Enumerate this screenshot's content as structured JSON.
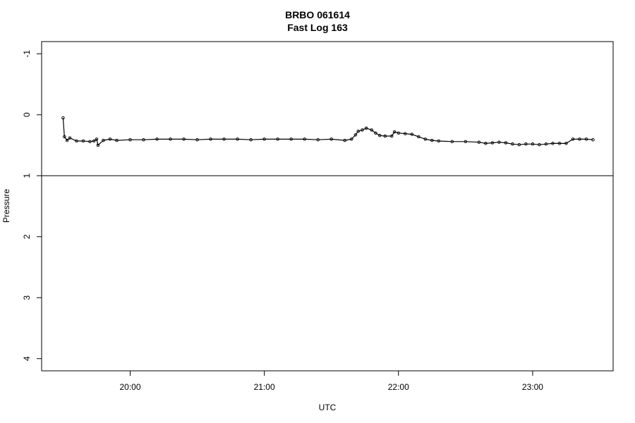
{
  "chart_data": {
    "type": "scatter",
    "title": "BRBO 061614",
    "subtitle": "Fast Log 163",
    "xlabel": "UTC",
    "ylabel": "Pressure",
    "x_unit": "hours UTC",
    "xlim": [
      19.34,
      23.6
    ],
    "ylim": [
      4.2,
      -1.2
    ],
    "y_reversed": true,
    "x_ticks": [
      {
        "value": 20,
        "label": "20:00"
      },
      {
        "value": 21,
        "label": "21:00"
      },
      {
        "value": 22,
        "label": "22:00"
      },
      {
        "value": 23,
        "label": "23:00"
      }
    ],
    "y_ticks": [
      {
        "value": -1,
        "label": "-1"
      },
      {
        "value": 0,
        "label": "0"
      },
      {
        "value": 1,
        "label": "1"
      },
      {
        "value": 2,
        "label": "2"
      },
      {
        "value": 3,
        "label": "3"
      },
      {
        "value": 4,
        "label": "4"
      }
    ],
    "reference_line": {
      "y": 1
    },
    "grid": false,
    "legend": "none",
    "series": [
      {
        "marker": "open circle with connecting line",
        "color": "#000000",
        "points": [
          [
            19.5,
            0.05
          ],
          [
            19.51,
            0.36
          ],
          [
            19.53,
            0.42
          ],
          [
            19.55,
            0.38
          ],
          [
            19.6,
            0.43
          ],
          [
            19.65,
            0.43
          ],
          [
            19.7,
            0.44
          ],
          [
            19.73,
            0.43
          ],
          [
            19.75,
            0.4
          ],
          [
            19.76,
            0.5
          ],
          [
            19.8,
            0.42
          ],
          [
            19.85,
            0.4
          ],
          [
            19.9,
            0.42
          ],
          [
            20.0,
            0.41
          ],
          [
            20.1,
            0.41
          ],
          [
            20.2,
            0.4
          ],
          [
            20.3,
            0.4
          ],
          [
            20.4,
            0.4
          ],
          [
            20.5,
            0.41
          ],
          [
            20.6,
            0.4
          ],
          [
            20.7,
            0.4
          ],
          [
            20.8,
            0.4
          ],
          [
            20.9,
            0.41
          ],
          [
            21.0,
            0.4
          ],
          [
            21.1,
            0.4
          ],
          [
            21.2,
            0.4
          ],
          [
            21.3,
            0.4
          ],
          [
            21.4,
            0.41
          ],
          [
            21.5,
            0.4
          ],
          [
            21.6,
            0.42
          ],
          [
            21.65,
            0.4
          ],
          [
            21.68,
            0.33
          ],
          [
            21.7,
            0.27
          ],
          [
            21.73,
            0.25
          ],
          [
            21.76,
            0.22
          ],
          [
            21.8,
            0.25
          ],
          [
            21.83,
            0.3
          ],
          [
            21.86,
            0.34
          ],
          [
            21.9,
            0.35
          ],
          [
            21.95,
            0.35
          ],
          [
            21.97,
            0.28
          ],
          [
            22.0,
            0.3
          ],
          [
            22.05,
            0.31
          ],
          [
            22.1,
            0.32
          ],
          [
            22.15,
            0.36
          ],
          [
            22.2,
            0.4
          ],
          [
            22.25,
            0.42
          ],
          [
            22.3,
            0.43
          ],
          [
            22.4,
            0.44
          ],
          [
            22.5,
            0.44
          ],
          [
            22.6,
            0.45
          ],
          [
            22.65,
            0.47
          ],
          [
            22.7,
            0.46
          ],
          [
            22.75,
            0.45
          ],
          [
            22.8,
            0.46
          ],
          [
            22.85,
            0.48
          ],
          [
            22.9,
            0.49
          ],
          [
            22.95,
            0.48
          ],
          [
            23.0,
            0.48
          ],
          [
            23.05,
            0.49
          ],
          [
            23.1,
            0.48
          ],
          [
            23.15,
            0.47
          ],
          [
            23.2,
            0.47
          ],
          [
            23.25,
            0.47
          ],
          [
            23.3,
            0.4
          ],
          [
            23.35,
            0.4
          ],
          [
            23.4,
            0.4
          ],
          [
            23.45,
            0.41
          ]
        ]
      }
    ]
  }
}
